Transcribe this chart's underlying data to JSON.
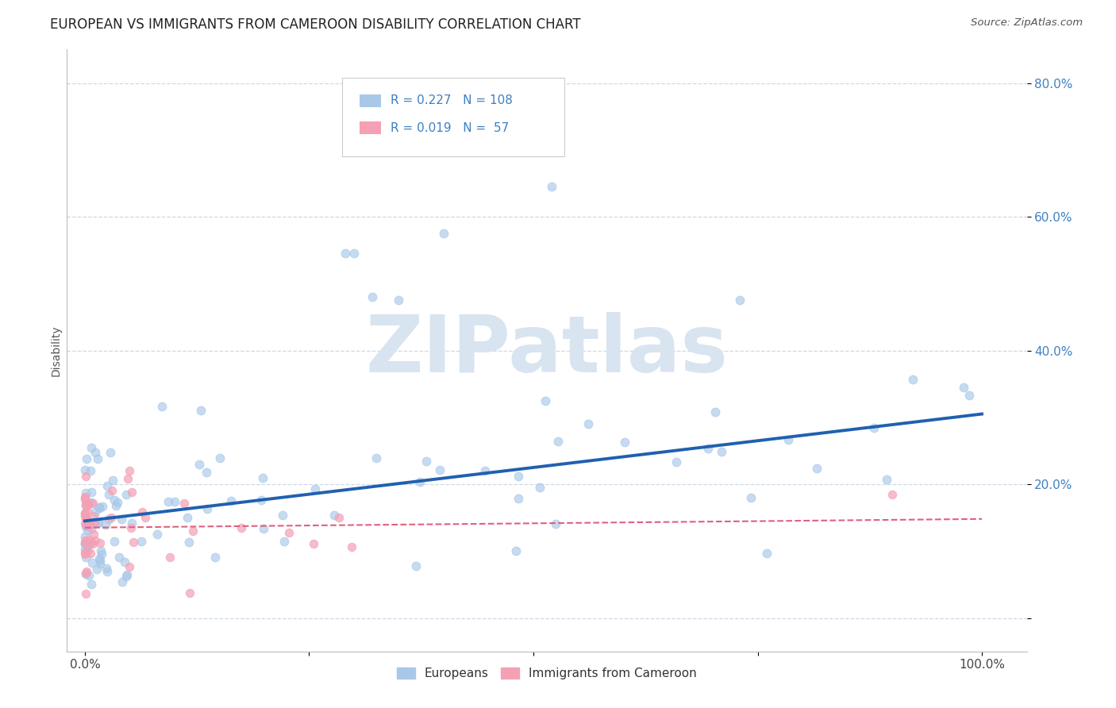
{
  "title": "EUROPEAN VS IMMIGRANTS FROM CAMEROON DISABILITY CORRELATION CHART",
  "source": "Source: ZipAtlas.com",
  "ylabel": "Disability",
  "xlim": [
    -0.02,
    1.05
  ],
  "ylim": [
    -0.05,
    0.85
  ],
  "ytick_vals": [
    0.0,
    0.2,
    0.4,
    0.6,
    0.8
  ],
  "ytick_labels": [
    "",
    "20.0%",
    "40.0%",
    "60.0%",
    "80.0%"
  ],
  "xtick_vals": [
    0.0,
    0.25,
    0.5,
    0.75,
    1.0
  ],
  "xtick_labels": [
    "0.0%",
    "",
    "",
    "",
    "100.0%"
  ],
  "europeans_R": 0.227,
  "europeans_N": 108,
  "cameroon_R": 0.019,
  "cameroon_N": 57,
  "blue_scatter_color": "#a8c8e8",
  "pink_scatter_color": "#f4a0b5",
  "blue_line_color": "#2060b0",
  "pink_line_color": "#e06080",
  "stat_color": "#4080c0",
  "watermark_color": "#d8e4f0",
  "title_fontsize": 12,
  "tick_fontsize": 11,
  "ylabel_fontsize": 10,
  "eu_line_start_y": 0.145,
  "eu_line_end_y": 0.305,
  "cam_line_start_y": 0.135,
  "cam_line_end_y": 0.148
}
